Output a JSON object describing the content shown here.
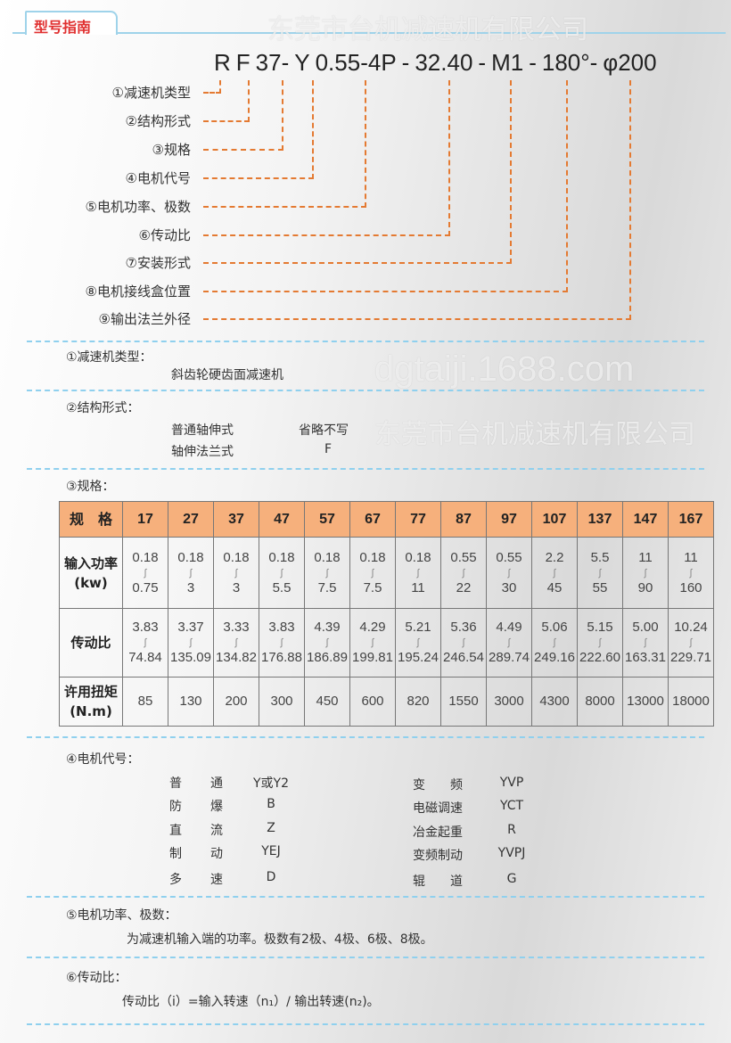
{
  "header": {
    "tab_title": "型号指南"
  },
  "model_code": {
    "parts": [
      "R",
      "F",
      "37-",
      "Y",
      "0.55-4P",
      "-",
      "32.40",
      "-",
      "M1",
      "-",
      "180°-",
      "φ200"
    ]
  },
  "code_labels": [
    "①减速机类型",
    "②结构形式",
    "③规格",
    "④电机代号",
    "⑤电机功率、极数",
    "⑥传动比",
    "⑦安装形式",
    "⑧电机接线盒位置",
    "⑨输出法兰外径"
  ],
  "watermarks": [
    "东莞市台机减速机有限公司",
    "东莞市台机减速机有限公司",
    "dgtaiji.1688.com"
  ],
  "sec1": {
    "title": "①减速机类型：",
    "content": "斜齿轮硬齿面减速机"
  },
  "sec2": {
    "title": "②结构形式：",
    "rows": [
      {
        "name": "普通轴伸式",
        "code": "省略不写"
      },
      {
        "name": "轴伸法兰式",
        "code": "F"
      }
    ]
  },
  "sec3": {
    "title": "③规格：",
    "table": {
      "header_label": "规　格",
      "sizes": [
        "17",
        "27",
        "37",
        "47",
        "57",
        "67",
        "77",
        "87",
        "97",
        "107",
        "137",
        "147",
        "167"
      ],
      "power_label": "输入功率",
      "power_unit": "(kw)",
      "power": [
        [
          "0.18",
          "0.75"
        ],
        [
          "0.18",
          "3"
        ],
        [
          "0.18",
          "3"
        ],
        [
          "0.18",
          "5.5"
        ],
        [
          "0.18",
          "7.5"
        ],
        [
          "0.18",
          "7.5"
        ],
        [
          "0.18",
          "11"
        ],
        [
          "0.55",
          "22"
        ],
        [
          "0.55",
          "30"
        ],
        [
          "2.2",
          "45"
        ],
        [
          "5.5",
          "55"
        ],
        [
          "11",
          "90"
        ],
        [
          "11",
          "160"
        ]
      ],
      "ratio_label": "传动比",
      "ratio": [
        [
          "3.83",
          "74.84"
        ],
        [
          "3.37",
          "135.09"
        ],
        [
          "3.33",
          "134.82"
        ],
        [
          "3.83",
          "176.88"
        ],
        [
          "4.39",
          "186.89"
        ],
        [
          "4.29",
          "199.81"
        ],
        [
          "5.21",
          "195.24"
        ],
        [
          "5.36",
          "246.54"
        ],
        [
          "4.49",
          "289.74"
        ],
        [
          "5.06",
          "249.16"
        ],
        [
          "5.15",
          "222.60"
        ],
        [
          "5.00",
          "163.31"
        ],
        [
          "10.24",
          "229.71"
        ]
      ],
      "torque_label": "许用扭矩",
      "torque_unit": "(N.m)",
      "torque": [
        "85",
        "130",
        "200",
        "300",
        "450",
        "600",
        "820",
        "1550",
        "3000",
        "4300",
        "8000",
        "13000",
        "18000"
      ],
      "range_mark": "∫"
    }
  },
  "sec4": {
    "title": "④电机代号：",
    "left": [
      [
        "普",
        "通",
        "Y或Y2"
      ],
      [
        "防",
        "爆",
        "B"
      ],
      [
        "直",
        "流",
        "Z"
      ],
      [
        "制",
        "动",
        "YEJ"
      ],
      [
        "多",
        "速",
        "D"
      ]
    ],
    "right": [
      [
        "变　　频",
        "YVP"
      ],
      [
        "电磁调速",
        "YCT"
      ],
      [
        "冶金起重",
        "R"
      ],
      [
        "变频制动",
        "YVPJ"
      ],
      [
        "辊　　道",
        "G"
      ]
    ]
  },
  "sec5": {
    "title": "⑤电机功率、极数：",
    "content": "为减速机输入端的功率。极数有2极、4极、6极、8极。"
  },
  "sec6": {
    "title": "⑥传动比：",
    "content": "传动比（i）=输入转速（n₁）/ 输出转速(n₂)。"
  },
  "colors": {
    "accent_dash": "#e47a32",
    "divider": "#8fd0ee",
    "table_header": "#f6b07c",
    "tab_text": "#e03030"
  }
}
